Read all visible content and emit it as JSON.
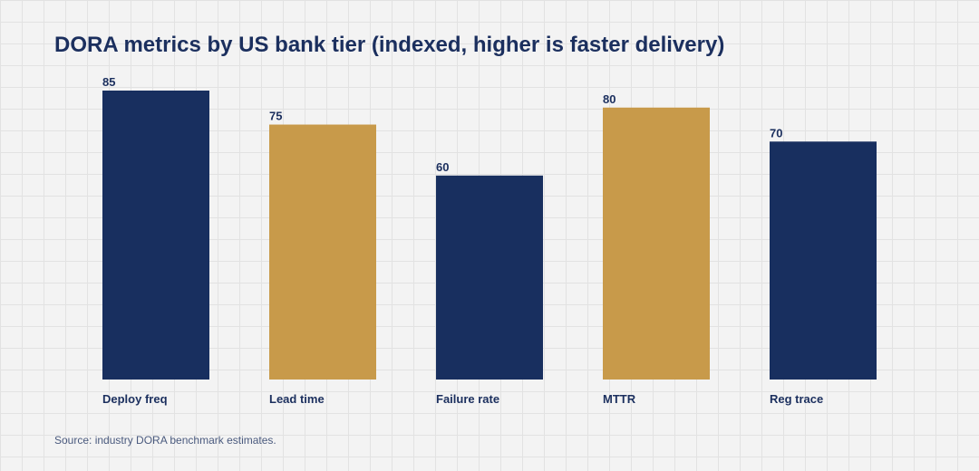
{
  "chart_data": {
    "type": "bar",
    "title": "DORA metrics by US bank tier (indexed, higher is faster delivery)",
    "categories": [
      "Deploy freq",
      "Lead time",
      "Failure rate",
      "MTTR",
      "Reg trace"
    ],
    "values": [
      85,
      75,
      60,
      80,
      70
    ],
    "value_labels": [
      "85",
      "75",
      "60",
      "80",
      "70"
    ],
    "bar_colors": [
      "#182f5f",
      "#c89a4a",
      "#182f5f",
      "#c89a4a",
      "#182f5f"
    ],
    "xlabel": "",
    "ylabel": "",
    "ylim": [
      0,
      85
    ],
    "grid": false,
    "legend": "none"
  },
  "footer": {
    "source": "Source: industry DORA benchmark estimates."
  },
  "colors": {
    "navy": "#182f5f",
    "gold": "#c89a4a",
    "background": "#f3f3f3"
  }
}
